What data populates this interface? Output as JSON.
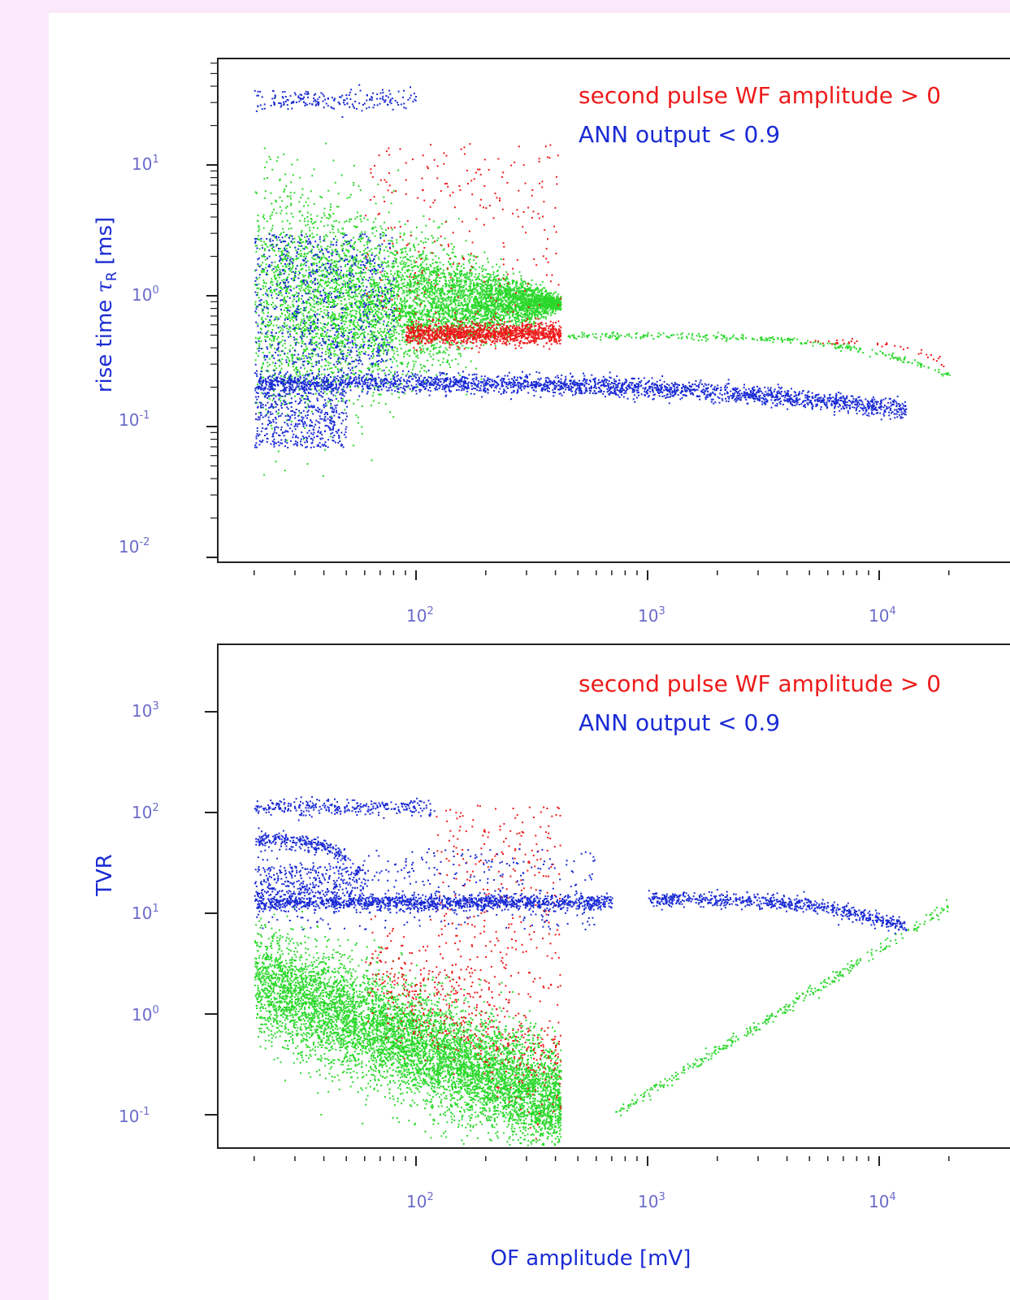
{
  "chart_data": [
    {
      "type": "scatter",
      "title": "",
      "xlabel": "",
      "ylabel_prefix": "rise time ",
      "ylabel_symbol": "τ",
      "ylabel_sub": "R",
      "ylabel_suffix": " [ms]",
      "x_scale": "log",
      "y_scale": "log",
      "xlim": [
        18,
        26000
      ],
      "ylim": [
        0.008,
        60
      ],
      "x_ticks": [
        {
          "base": "10",
          "exp": "2"
        },
        {
          "base": "10",
          "exp": "3"
        },
        {
          "base": "10",
          "exp": "4"
        }
      ],
      "y_ticks": [
        {
          "base": "10",
          "exp": "1"
        },
        {
          "base": "10",
          "exp": "0"
        },
        {
          "base": "10",
          "exp": "-1"
        },
        {
          "base": "10",
          "exp": "-2"
        }
      ],
      "legend_position": "top-right",
      "legend": [
        {
          "label": "second pulse WF amplitude > 0",
          "color": "#ee1a1a"
        },
        {
          "label": "ANN output < 0.9",
          "color": "#1a2bd4"
        }
      ],
      "series": [
        {
          "color": "#2bd82b",
          "clusters": [
            {
              "x_range": [
                20,
                420
              ],
              "y_range": [
                0.12,
                5
              ],
              "n": 6000,
              "shape": "funnel",
              "y_apex": 0.5
            },
            {
              "x_range": [
                420,
                20000
              ],
              "y_range": [
                0.25,
                0.5
              ],
              "n": 300,
              "shape": "curve_top"
            }
          ]
        },
        {
          "color": "#ee1a1a",
          "clusters": [
            {
              "x_range": [
                90,
                420
              ],
              "y_range": [
                0.4,
                0.7
              ],
              "n": 1200,
              "shape": "band",
              "y_center": 0.52
            },
            {
              "x_range": [
                60,
                420
              ],
              "y_range": [
                0.6,
                15
              ],
              "n": 250,
              "shape": "scatter"
            },
            {
              "x_range": [
                5000,
                20000
              ],
              "y_range": [
                0.28,
                0.45
              ],
              "n": 40,
              "shape": "curve_top"
            }
          ]
        },
        {
          "color": "#1a2bd4",
          "clusters": [
            {
              "x_range": [
                20,
                80
              ],
              "y_range": [
                0.25,
                0.45
              ],
              "n": 80,
              "shape": "scatter"
            },
            {
              "x_range": [
                20,
                100
              ],
              "y_range": [
                25,
                35
              ],
              "n": 200,
              "shape": "band",
              "y_center": 32
            },
            {
              "x_range": [
                20,
                50
              ],
              "y_range": [
                0.07,
                0.2
              ],
              "n": 500,
              "shape": "scatter"
            },
            {
              "x_range": [
                20,
                13000
              ],
              "y_range": [
                0.13,
                0.3
              ],
              "n": 2500,
              "shape": "descending_band",
              "y_center": 0.22
            },
            {
              "x_range": [
                20,
                80
              ],
              "y_range": [
                0.3,
                3
              ],
              "n": 700,
              "shape": "scatter"
            }
          ]
        }
      ]
    },
    {
      "type": "scatter",
      "title": "",
      "xlabel": "OF amplitude [mV]",
      "ylabel": "TVR",
      "x_scale": "log",
      "y_scale": "log",
      "xlim": [
        18,
        26000
      ],
      "ylim": [
        0.05,
        5000
      ],
      "x_ticks": [
        {
          "base": "10",
          "exp": "2"
        },
        {
          "base": "10",
          "exp": "3"
        },
        {
          "base": "10",
          "exp": "4"
        }
      ],
      "y_ticks": [
        {
          "base": "10",
          "exp": "3"
        },
        {
          "base": "10",
          "exp": "2"
        },
        {
          "base": "10",
          "exp": "1"
        },
        {
          "base": "10",
          "exp": "0"
        },
        {
          "base": "10",
          "exp": "-1"
        }
      ],
      "legend_position": "top-right",
      "legend": [
        {
          "label": "second pulse WF amplitude > 0",
          "color": "#ee1a1a"
        },
        {
          "label": "ANN output < 0.9",
          "color": "#1a2bd4"
        }
      ],
      "series": [
        {
          "color": "#2bd82b",
          "clusters": [
            {
              "x_range": [
                20,
                420
              ],
              "y_range": [
                0.08,
                7
              ],
              "n": 7000,
              "shape": "diagonal_blob"
            },
            {
              "x_range": [
                700,
                20000
              ],
              "y_range": [
                0.1,
                12
              ],
              "n": 350,
              "shape": "rising_line"
            }
          ]
        },
        {
          "color": "#ee1a1a",
          "clusters": [
            {
              "x_range": [
                60,
                420
              ],
              "y_range": [
                0.2,
                8
              ],
              "n": 500,
              "shape": "diagonal_blob"
            },
            {
              "x_range": [
                120,
                420
              ],
              "y_range": [
                1.5,
                120
              ],
              "n": 300,
              "shape": "scatter"
            }
          ]
        },
        {
          "color": "#1a2bd4",
          "clusters": [
            {
              "x_range": [
                20,
                700
              ],
              "y_range": [
                11,
                15
              ],
              "n": 1400,
              "shape": "band",
              "y_center": 13
            },
            {
              "x_range": [
                1000,
                13000
              ],
              "y_range": [
                7,
                16
              ],
              "n": 700,
              "shape": "descending_band",
              "y_center": 14
            },
            {
              "x_range": [
                20,
                120
              ],
              "y_range": [
                90,
                130
              ],
              "n": 300,
              "shape": "band",
              "y_center": 115
            },
            {
              "x_range": [
                20,
                50
              ],
              "y_range": [
                35,
                75
              ],
              "n": 250,
              "shape": "descending_band",
              "y_center": 55
            },
            {
              "x_range": [
                20,
                60
              ],
              "y_range": [
                15,
                30
              ],
              "n": 300,
              "shape": "scatter"
            },
            {
              "x_range": [
                20,
                600
              ],
              "y_range": [
                7,
                45
              ],
              "n": 400,
              "shape": "scatter"
            }
          ]
        }
      ]
    }
  ]
}
